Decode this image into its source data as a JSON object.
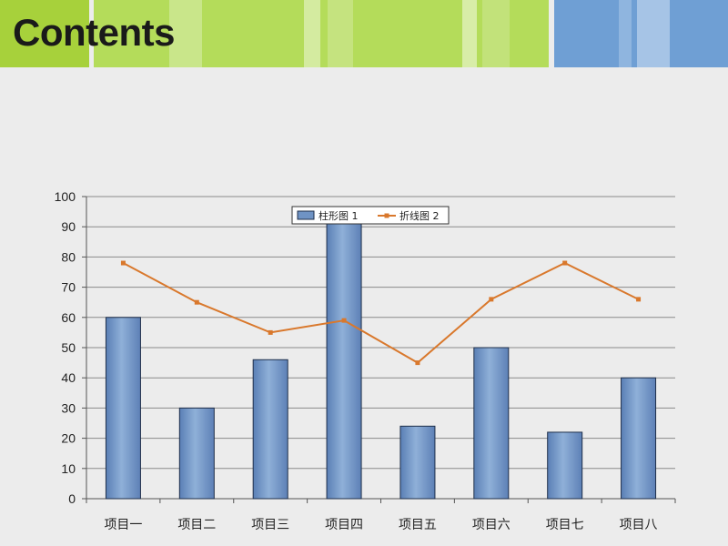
{
  "slide": {
    "title": "Contents"
  },
  "chart_data": {
    "type": "bar",
    "categories": [
      "项目一",
      "项目二",
      "项目三",
      "项目四",
      "项目五",
      "项目六",
      "项目七",
      "项目八"
    ],
    "series": [
      {
        "name": "柱形图 1",
        "kind": "bar",
        "color": "#6f93c4",
        "values": [
          60,
          30,
          46,
          92,
          24,
          50,
          22,
          40
        ]
      },
      {
        "name": "折线图 2",
        "kind": "line",
        "color": "#d9782c",
        "values": [
          78,
          65,
          55,
          59,
          45,
          66,
          78,
          66
        ]
      }
    ],
    "yticks": [
      "0",
      "10",
      "20",
      "30",
      "40",
      "50",
      "60",
      "70",
      "80",
      "90",
      "100"
    ],
    "ylim": [
      0,
      100
    ],
    "grid": true,
    "legend": "top-center",
    "title": "",
    "xlabel": "",
    "ylabel": ""
  },
  "colors": {
    "banner_green": "#a6d23a",
    "banner_blue": "#6b9fd3",
    "background": "#ececec"
  }
}
